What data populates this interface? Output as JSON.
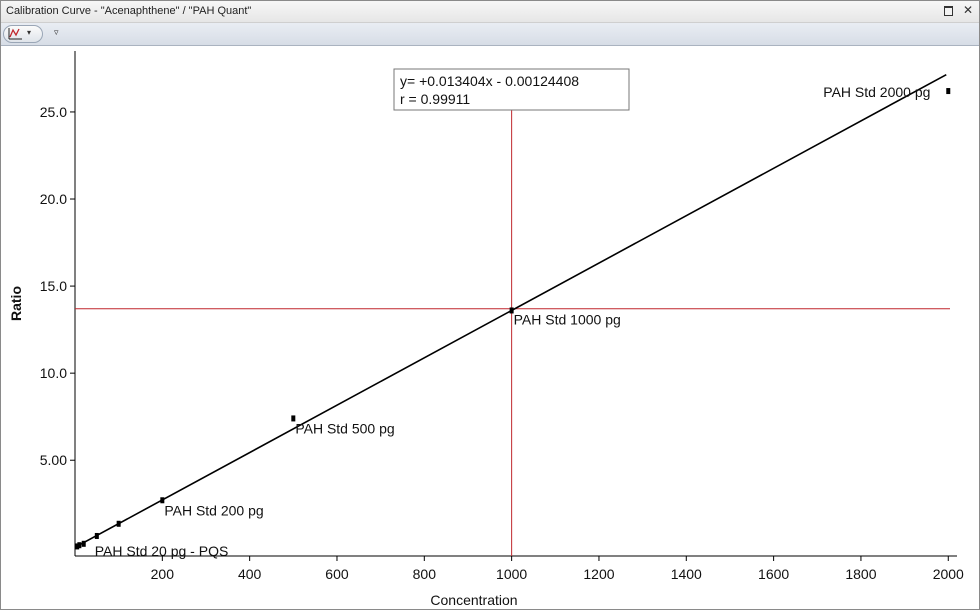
{
  "window": {
    "title": "Calibration Curve - \"Acenaphthene\" / \"PAH Quant\"",
    "buttons": [
      {
        "icon": "restore-icon",
        "glyph": ""
      },
      {
        "icon": "close-icon",
        "glyph": "✕"
      }
    ]
  },
  "toolbar": {
    "tool_icon": "calibration-curve-icon",
    "dropdown_glyph": "▾",
    "overflow_glyph": "▿"
  },
  "chart_data": {
    "type": "scatter",
    "title": "",
    "xlabel": "Concentration",
    "ylabel": "Ratio",
    "xlim": [
      0,
      2020
    ],
    "ylim": [
      -0.5,
      28.5
    ],
    "xticks": [
      200,
      400,
      600,
      800,
      1000,
      1200,
      1400,
      1600,
      1800,
      2000
    ],
    "xtick_labels": [
      "200",
      "400",
      "600",
      "800",
      "1000",
      "1200",
      "1400",
      "1600",
      "1800",
      "2000"
    ],
    "yticks": [
      5,
      10,
      15,
      20,
      25
    ],
    "ytick_labels": [
      "5.00",
      "10.0",
      "15.0",
      "20.0",
      "25.0"
    ],
    "grid": false,
    "regression": {
      "slope": 0.013404,
      "intercept": -0.00124408,
      "x_range": [
        0,
        2000
      ],
      "equation_text": "y= +0.013404x - 0.00124408",
      "r_text": "r = 0.99911",
      "color": "#000000"
    },
    "crosshair": {
      "x": 1000,
      "y": 13.7,
      "color": "#c0272d"
    },
    "points": [
      {
        "x": 20,
        "y": 0.2,
        "label": "PAH Std 20 pg - PQS"
      },
      {
        "x": 50,
        "y": 0.65,
        "label": ""
      },
      {
        "x": 100,
        "y": 1.35,
        "label": ""
      },
      {
        "x": 200,
        "y": 2.7,
        "label": "PAH Std 200 pg"
      },
      {
        "x": 500,
        "y": 7.4,
        "label": "PAH Std 500 pg"
      },
      {
        "x": 1000,
        "y": 13.6,
        "label": "PAH Std 1000 pg"
      },
      {
        "x": 2000,
        "y": 26.2,
        "label": "PAH Std 2000 pg"
      }
    ],
    "extra_points": [
      {
        "x": 5,
        "y": 0.05
      },
      {
        "x": 10,
        "y": 0.12
      }
    ]
  }
}
